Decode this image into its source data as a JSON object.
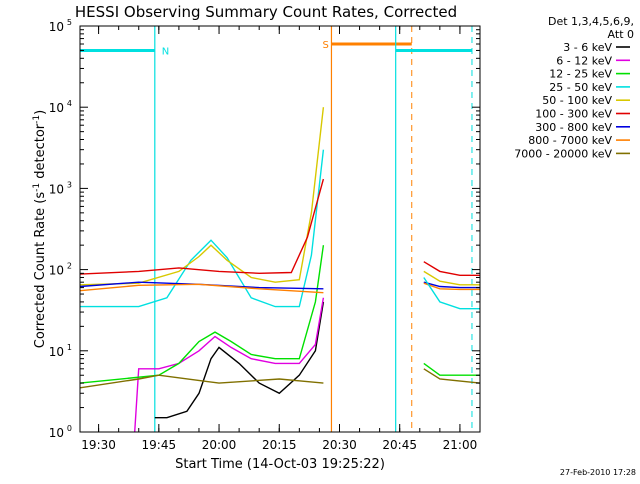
{
  "chart_data": {
    "type": "line",
    "title": "HESSI Observing Summary Count Rates, Corrected",
    "xlabel": "Start Time (14-Oct-03 19:25:22)",
    "ylabel_main": "Corrected Count Rate (s",
    "ylabel_unit": "detector",
    "ylabel_sup": "-1",
    "ylog": true,
    "ylim": [
      1,
      100000
    ],
    "yticks": [
      {
        "base": "10",
        "exp": "0",
        "value": 1
      },
      {
        "base": "10",
        "exp": "1",
        "value": 10
      },
      {
        "base": "10",
        "exp": "2",
        "value": 100
      },
      {
        "base": "10",
        "exp": "3",
        "value": 1000
      },
      {
        "base": "10",
        "exp": "4",
        "value": 10000
      },
      {
        "base": "10",
        "exp": "5",
        "value": 100000
      }
    ],
    "xlim": [
      "19:25:22",
      "21:05:00"
    ],
    "xticks": [
      "19:30",
      "19:45",
      "20:00",
      "20:15",
      "20:30",
      "20:45",
      "21:00"
    ],
    "legend_header": [
      "Det 1,3,4,5,6,9,",
      "Att 0"
    ],
    "legend_position": "right",
    "series": [
      {
        "name": "3 - 6 keV",
        "color": "#000000",
        "points": [
          [
            "19:44",
            1.5
          ],
          [
            "19:47",
            1.5
          ],
          [
            "19:52",
            1.8
          ],
          [
            "19:55",
            3
          ],
          [
            "19:58",
            8
          ],
          [
            "20:00",
            11
          ],
          [
            "20:05",
            7
          ],
          [
            "20:10",
            4
          ],
          [
            "20:15",
            3
          ],
          [
            "20:20",
            5
          ],
          [
            "20:24",
            10
          ],
          [
            "20:26",
            40
          ]
        ]
      },
      {
        "name": "6 - 12 keV",
        "color": "#e000e0",
        "points": [
          [
            "19:39",
            1
          ],
          [
            "19:40",
            6
          ],
          [
            "19:45",
            6
          ],
          [
            "19:50",
            7
          ],
          [
            "19:55",
            10
          ],
          [
            "19:59",
            15
          ],
          [
            "20:03",
            11
          ],
          [
            "20:08",
            8
          ],
          [
            "20:14",
            7
          ],
          [
            "20:20",
            7
          ],
          [
            "20:24",
            12
          ],
          [
            "20:26",
            45
          ]
        ]
      },
      {
        "name": "12 - 25 keV",
        "color": "#00e000",
        "points": [
          [
            "19:25:22",
            4
          ],
          [
            "19:45",
            5
          ],
          [
            "19:50",
            7
          ],
          [
            "19:55",
            13
          ],
          [
            "19:59",
            17
          ],
          [
            "20:03",
            13
          ],
          [
            "20:08",
            9
          ],
          [
            "20:14",
            8
          ],
          [
            "20:20",
            8
          ],
          [
            "20:24",
            40
          ],
          [
            "20:26",
            200
          ]
        ]
      },
      {
        "name": "25 - 50 keV",
        "color": "#00e0e0",
        "points": [
          [
            "19:25:22",
            35
          ],
          [
            "19:40",
            35
          ],
          [
            "19:47",
            45
          ],
          [
            "19:53",
            130
          ],
          [
            "19:58",
            230
          ],
          [
            "20:02",
            140
          ],
          [
            "20:08",
            45
          ],
          [
            "20:14",
            35
          ],
          [
            "20:20",
            35
          ],
          [
            "20:23",
            150
          ],
          [
            "20:26",
            3000
          ]
        ]
      },
      {
        "name": "50 - 100 keV",
        "color": "#d8c800",
        "points": [
          [
            "19:25:22",
            65
          ],
          [
            "19:40",
            68
          ],
          [
            "19:50",
            95
          ],
          [
            "19:55",
            145
          ],
          [
            "19:58",
            200
          ],
          [
            "20:02",
            130
          ],
          [
            "20:08",
            80
          ],
          [
            "20:14",
            70
          ],
          [
            "20:20",
            75
          ],
          [
            "20:23",
            500
          ],
          [
            "20:26",
            10000
          ]
        ]
      },
      {
        "name": "100 - 300 keV",
        "color": "#e00000",
        "points": [
          [
            "19:25:22",
            88
          ],
          [
            "19:40",
            95
          ],
          [
            "19:50",
            105
          ],
          [
            "20:00",
            95
          ],
          [
            "20:10",
            90
          ],
          [
            "20:18",
            92
          ],
          [
            "20:22",
            250
          ],
          [
            "20:26",
            1300
          ]
        ]
      },
      {
        "name": "300 - 800 keV",
        "color": "#0000e0",
        "points": [
          [
            "19:25:22",
            62
          ],
          [
            "19:40",
            70
          ],
          [
            "19:55",
            66
          ],
          [
            "20:10",
            60
          ],
          [
            "20:26",
            58
          ]
        ]
      },
      {
        "name": "800 - 7000 keV",
        "color": "#ff8000",
        "points": [
          [
            "19:25:22",
            55
          ],
          [
            "19:40",
            64
          ],
          [
            "19:55",
            66
          ],
          [
            "20:10",
            58
          ],
          [
            "20:26",
            52
          ]
        ]
      },
      {
        "name": "7000 - 20000 keV",
        "color": "#807000",
        "points": [
          [
            "19:25:22",
            3.5
          ],
          [
            "19:40",
            4.5
          ],
          [
            "19:45",
            5
          ],
          [
            "20:00",
            4
          ],
          [
            "20:15",
            4.5
          ],
          [
            "20:26",
            4
          ]
        ]
      }
    ],
    "post_gap_series": [
      {
        "name": "100 - 300 keV",
        "color": "#e00000",
        "points": [
          [
            "20:51",
            125
          ],
          [
            "20:55",
            95
          ],
          [
            "21:00",
            85
          ],
          [
            "21:05",
            85
          ]
        ]
      },
      {
        "name": "50 - 100 keV",
        "color": "#d8c800",
        "points": [
          [
            "20:51",
            95
          ],
          [
            "20:55",
            72
          ],
          [
            "21:00",
            65
          ],
          [
            "21:05",
            65
          ]
        ]
      },
      {
        "name": "300 - 800 keV",
        "color": "#0000e0",
        "points": [
          [
            "20:51",
            70
          ],
          [
            "20:55",
            62
          ],
          [
            "21:00",
            60
          ],
          [
            "21:05",
            60
          ]
        ]
      },
      {
        "name": "800 - 7000 keV",
        "color": "#ff8000",
        "points": [
          [
            "20:51",
            68
          ],
          [
            "20:55",
            58
          ],
          [
            "21:00",
            57
          ],
          [
            "21:05",
            57
          ]
        ]
      },
      {
        "name": "25 - 50 keV",
        "color": "#00e0e0",
        "points": [
          [
            "20:51",
            80
          ],
          [
            "20:55",
            40
          ],
          [
            "21:00",
            33
          ],
          [
            "21:05",
            33
          ]
        ]
      },
      {
        "name": "12 - 25 keV",
        "color": "#00e000",
        "points": [
          [
            "20:51",
            7
          ],
          [
            "20:55",
            5
          ],
          [
            "21:05",
            5
          ]
        ]
      },
      {
        "name": "7000 - 20000 keV",
        "color": "#807000",
        "points": [
          [
            "20:51",
            6
          ],
          [
            "20:55",
            4.5
          ],
          [
            "21:05",
            4
          ]
        ]
      }
    ],
    "annotations": [
      {
        "label": "N",
        "color": "#00e0e0",
        "bar_start": "19:25:22",
        "bar_end": "19:44",
        "value": 50000,
        "vlines": [
          "19:44"
        ]
      },
      {
        "label": "S",
        "color": "#ff8000",
        "bar_start": "20:28",
        "bar_end": "20:48",
        "value": 60000,
        "vlines": [
          "20:28"
        ],
        "dashed_vlines": [
          "20:48"
        ]
      },
      {
        "label": "",
        "color": "#00e0e0",
        "bar_start": "20:44",
        "bar_end": "21:03",
        "value": 50000,
        "vlines": [
          "20:44"
        ],
        "dashed_vlines": [
          "21:03"
        ]
      }
    ],
    "footer": "27-Feb-2010 17:28"
  }
}
